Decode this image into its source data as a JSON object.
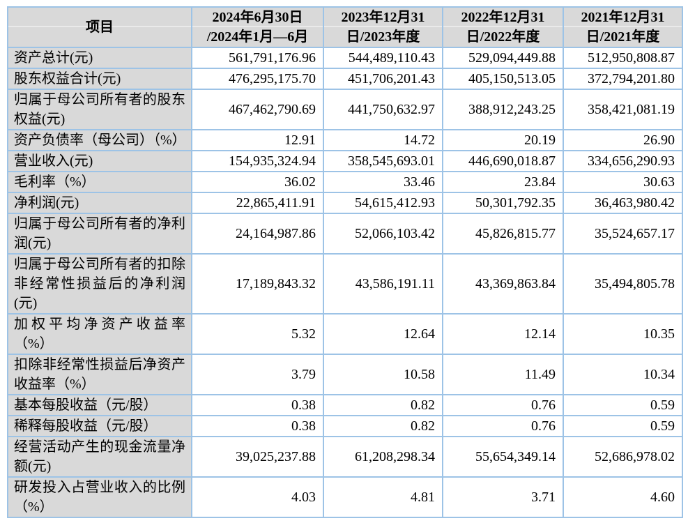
{
  "colors": {
    "border": "#9dc3e6",
    "header_bg": "#d9d9d9",
    "label_bg": "#d9d9d9",
    "page_bg": "#ffffff",
    "text": "#000000"
  },
  "table": {
    "headers": [
      {
        "line1": "项目",
        "line2": ""
      },
      {
        "line1": "2024年6月30日",
        "line2": "/2024年1月—6月"
      },
      {
        "line1": "2023年12月31",
        "line2": "日/2023年度"
      },
      {
        "line1": "2022年12月31",
        "line2": "日/2022年度"
      },
      {
        "line1": "2021年12月31",
        "line2": "日/2021年度"
      }
    ],
    "rows": [
      {
        "label": "资产总计(元)",
        "values": [
          "561,791,176.96",
          "544,489,110.43",
          "529,094,449.88",
          "512,950,808.87"
        ]
      },
      {
        "label": "股东权益合计(元)",
        "values": [
          "476,295,175.70",
          "451,706,201.43",
          "405,150,513.05",
          "372,794,201.80"
        ]
      },
      {
        "label": "归属于母公司所有者的股东权益(元)",
        "values": [
          "467,462,790.69",
          "441,750,632.97",
          "388,912,243.25",
          "358,421,081.19"
        ]
      },
      {
        "label": "资产负债率（母公司）（%）",
        "values": [
          "12.91",
          "14.72",
          "20.19",
          "26.90"
        ]
      },
      {
        "label": "营业收入(元)",
        "values": [
          "154,935,324.94",
          "358,545,693.01",
          "446,690,018.87",
          "334,656,290.93"
        ]
      },
      {
        "label": "毛利率（%）",
        "values": [
          "36.02",
          "33.46",
          "23.84",
          "30.63"
        ]
      },
      {
        "label": "净利润(元)",
        "values": [
          "22,865,411.91",
          "54,615,412.93",
          "50,301,792.35",
          "36,463,980.42"
        ]
      },
      {
        "label": "归属于母公司所有者的净利润(元)",
        "values": [
          "24,164,987.86",
          "52,066,103.42",
          "45,826,815.77",
          "35,524,657.17"
        ]
      },
      {
        "label": "归属于母公司所有者的扣除非经常性损益后的净利润(元)",
        "values": [
          "17,189,843.32",
          "43,586,191.11",
          "43,369,863.84",
          "35,494,805.78"
        ]
      },
      {
        "label": "加权平均净资产收益率（%）",
        "values": [
          "5.32",
          "12.64",
          "12.14",
          "10.35"
        ]
      },
      {
        "label": "扣除非经常性损益后净资产收益率（%）",
        "values": [
          "3.79",
          "10.58",
          "11.49",
          "10.34"
        ]
      },
      {
        "label": "基本每股收益（元/股）",
        "values": [
          "0.38",
          "0.82",
          "0.76",
          "0.59"
        ]
      },
      {
        "label": "稀释每股收益（元/股）",
        "values": [
          "0.38",
          "0.82",
          "0.76",
          "0.59"
        ]
      },
      {
        "label": "经营活动产生的现金流量净额(元)",
        "values": [
          "39,025,237.88",
          "61,208,298.34",
          "55,654,349.14",
          "52,686,978.02"
        ]
      },
      {
        "label": "研发投入占营业收入的比例（%）",
        "values": [
          "4.03",
          "4.81",
          "3.71",
          "4.60"
        ]
      }
    ]
  }
}
